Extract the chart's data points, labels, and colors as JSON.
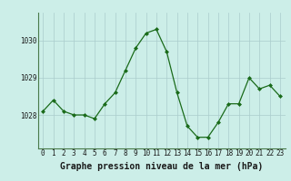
{
  "hours": [
    0,
    1,
    2,
    3,
    4,
    5,
    6,
    7,
    8,
    9,
    10,
    11,
    12,
    13,
    14,
    15,
    16,
    17,
    18,
    19,
    20,
    21,
    22,
    23
  ],
  "pressure": [
    1028.1,
    1028.4,
    1028.1,
    1028.0,
    1028.0,
    1027.9,
    1028.3,
    1028.6,
    1029.2,
    1029.8,
    1030.2,
    1030.3,
    1029.7,
    1028.6,
    1027.7,
    1027.4,
    1027.4,
    1027.8,
    1028.3,
    1028.3,
    1029.0,
    1028.7,
    1028.8,
    1028.5
  ],
  "line_color": "#1a6b1a",
  "marker_color": "#1a6b1a",
  "bg_color": "#cceee8",
  "grid_color": "#aacccc",
  "xlabel": "Graphe pression niveau de la mer (hPa)",
  "xlabel_fontsize": 7,
  "tick_fontsize": 5.5,
  "ytick_labels": [
    "1028",
    "1029",
    "1030"
  ],
  "ylim": [
    1027.1,
    1030.75
  ],
  "xlim": [
    -0.5,
    23.5
  ],
  "yticks": [
    1028,
    1029,
    1030
  ]
}
